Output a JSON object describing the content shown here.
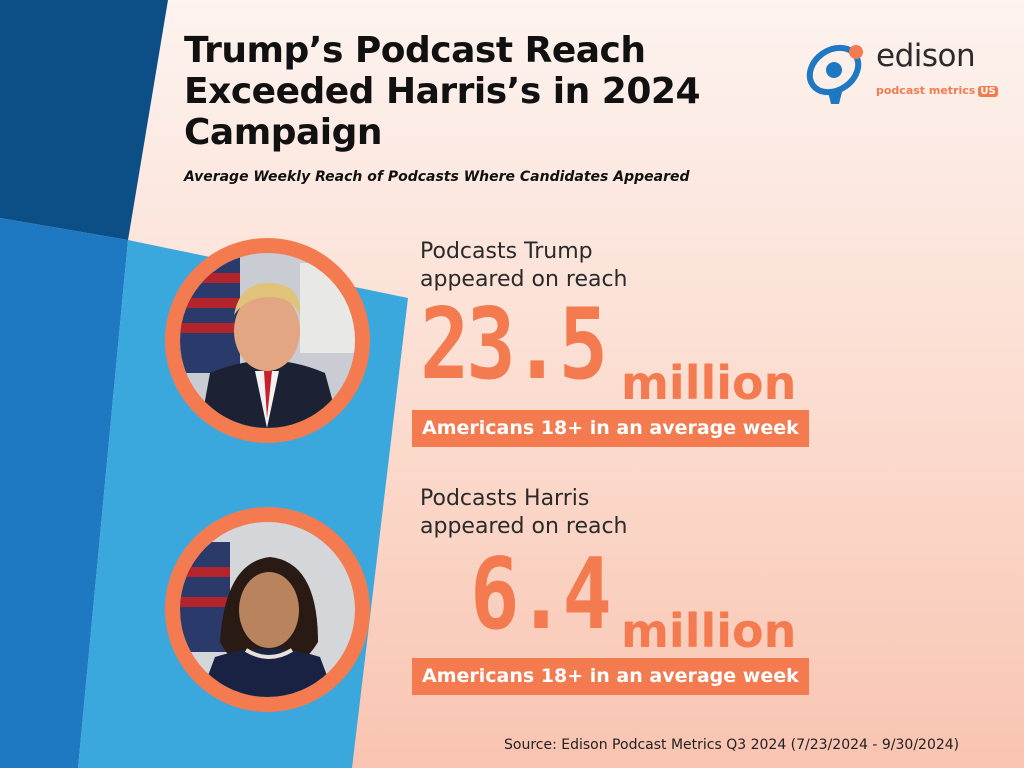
{
  "title": "Trump’s Podcast Reach Exceeded Harris’s in 2024 Campaign",
  "subtitle": "Average Weekly Reach of Podcasts Where Candidates Appeared",
  "logo": {
    "wordmark": "edison",
    "tagline": "podcast metrics",
    "badge": "US"
  },
  "colors": {
    "accent": "#f47a50",
    "dark_blue": "#0b4f86",
    "mid_blue": "#1e78c2",
    "light_blue": "#3aa8dd"
  },
  "chart_data": {
    "type": "table",
    "title": "Trump’s Podcast Reach Exceeded Harris’s in 2024 Campaign",
    "subtitle": "Average Weekly Reach of Podcasts Where Candidates Appeared",
    "rows": [
      {
        "candidate": "Trump",
        "lead": "Podcasts Trump\nappeared on reach",
        "value": 23.5,
        "value_label": "23.5",
        "unit": "million",
        "descriptor": "Americans 18+ in an average week",
        "photo": "trump-portrait"
      },
      {
        "candidate": "Harris",
        "lead": "Podcasts Harris\nappeared on reach",
        "value": 6.4,
        "value_label": "6.4",
        "unit": "million",
        "descriptor": "Americans 18+ in an average week",
        "photo": "harris-portrait"
      }
    ],
    "source": "Source: Edison Podcast Metrics Q3 2024 (7/23/2024 - 9/30/2024)"
  }
}
